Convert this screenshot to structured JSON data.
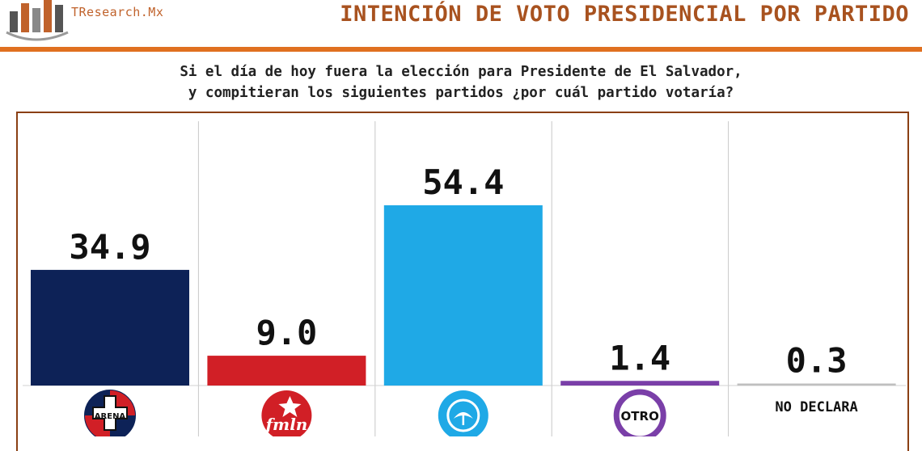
{
  "brand": {
    "logo_text": "TResearch.Mx",
    "logo_icon": "bar-chart-logo-icon"
  },
  "header": {
    "title": "INTENCIÓN DE VOTO PRESIDENCIAL POR PARTIDO"
  },
  "question": {
    "line1": "Si el día de hoy fuera la elección para Presidente de El Salvador,",
    "line2": "y compitieran los siguientes partidos ¿por cuál partido votaría?"
  },
  "colors": {
    "header_title": "#a8521f",
    "rule": "#e07020",
    "frame": "#8a3f14",
    "arena": "#0d2257",
    "fmln": "#d11f26",
    "nuevas_ideas": "#1fa9e6",
    "otro": "#7a3fa8",
    "no_declara": "#bfbfbf"
  },
  "chart_data": {
    "type": "bar",
    "categories": [
      "ARENA",
      "FMLN",
      "NUEVAS IDEAS",
      "OTRO",
      "NO DECLARA"
    ],
    "values": [
      34.9,
      9.0,
      54.4,
      1.4,
      0.3
    ],
    "value_labels": [
      "34.9",
      "9.0",
      "54.4",
      "1.4",
      "0.3"
    ],
    "category_icons": [
      "arena-logo-icon",
      "fmln-logo-icon",
      "nuevas-ideas-logo-icon",
      "otro-circle-icon",
      ""
    ],
    "category_text": [
      "ARENA",
      "fmln",
      "",
      "OTRO",
      "NO DECLARA"
    ],
    "bar_colors": [
      "#0d2257",
      "#d11f26",
      "#1fa9e6",
      "#7a3fa8",
      "#bfbfbf"
    ],
    "title": "",
    "xlabel": "",
    "ylabel": "",
    "ylim": [
      0,
      80
    ],
    "grid": false,
    "legend": "none"
  }
}
